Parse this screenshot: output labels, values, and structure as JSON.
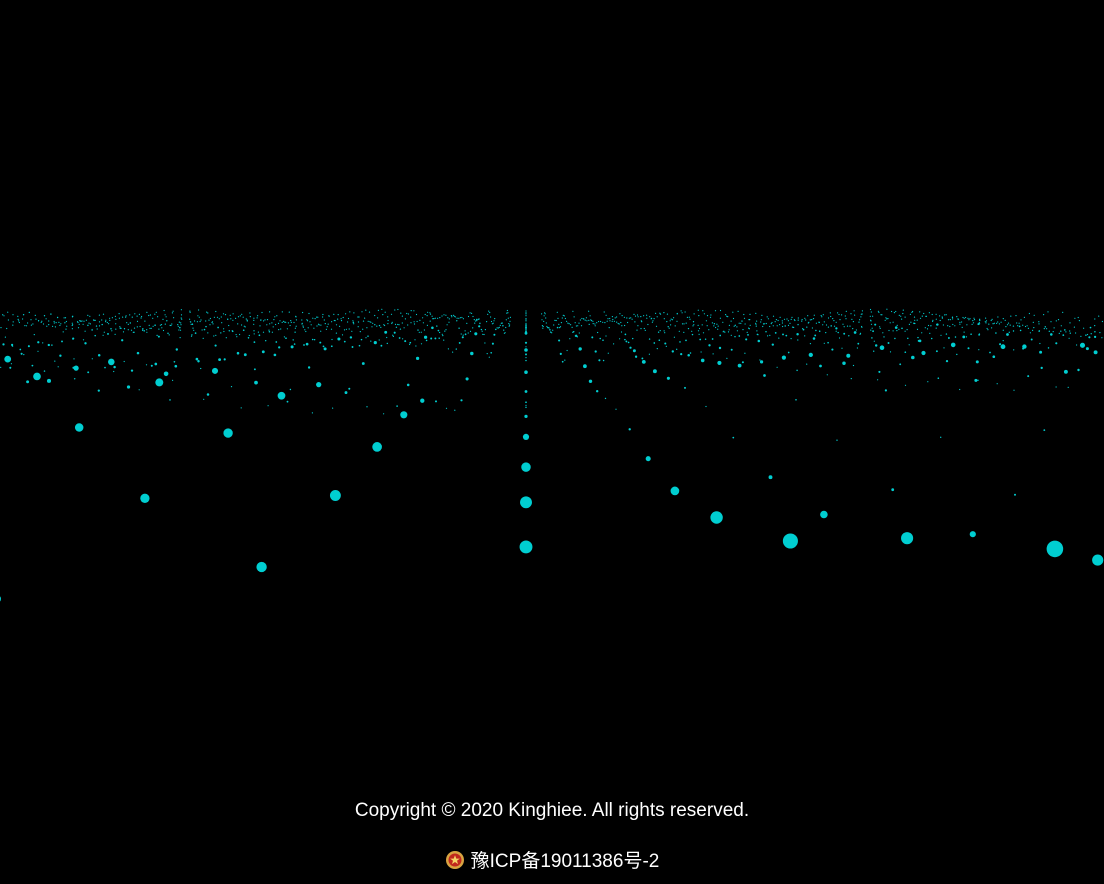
{
  "background_color": "#000000",
  "particle_color": "#00CED1",
  "footer": {
    "copyright": "Copyright © 2020 Kinghiee. All rights reserved.",
    "icp_link": "豫ICP备19011386号-2",
    "icp_badge_icon": "police-emblem-icon"
  }
}
